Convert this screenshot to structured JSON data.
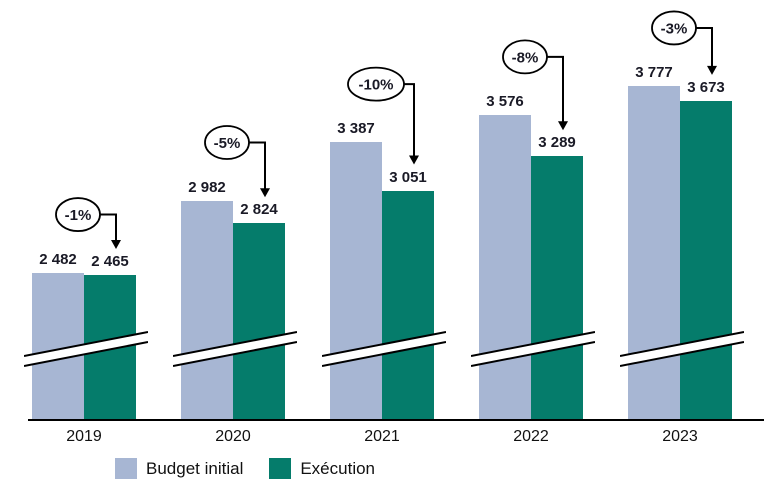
{
  "chart_data": {
    "type": "bar",
    "title": "",
    "categories": [
      "2019",
      "2020",
      "2021",
      "2022",
      "2023"
    ],
    "series": [
      {
        "name": "Budget initial",
        "color": "#a7b6d3",
        "values": [
          2482,
          2982,
          3387,
          3576,
          3777
        ],
        "value_labels": [
          "2 482",
          "2 982",
          "3 387",
          "3 576",
          "3 777"
        ]
      },
      {
        "name": "Exécution",
        "color": "#057c6b",
        "values": [
          2465,
          2824,
          3051,
          3289,
          3673
        ],
        "value_labels": [
          "2 465",
          "2 824",
          "3 051",
          "3 289",
          "3 673"
        ]
      }
    ],
    "delta_labels": [
      "-1%",
      "-5%",
      "-10%",
      "-8%",
      "-3%"
    ],
    "axis_break": true,
    "legend_position": "bottom",
    "colors": {
      "label_text": "#1a1a26",
      "axis": "#000000",
      "annotation": "#000000",
      "background": "#ffffff"
    }
  }
}
